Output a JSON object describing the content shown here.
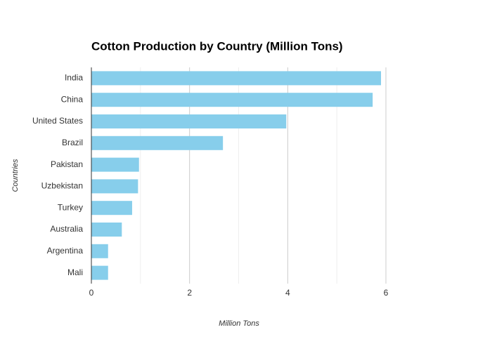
{
  "chart_data": {
    "type": "bar",
    "orientation": "horizontal",
    "title": "Cotton Production by Country (Million Tons)",
    "x_label": "Million Tons",
    "y_label": "Countries",
    "categories": [
      "India",
      "China",
      "United States",
      "Brazil",
      "Pakistan",
      "Uzbekistan",
      "Turkey",
      "Australia",
      "Argentina",
      "Mali"
    ],
    "values": [
      5.9,
      5.73,
      3.97,
      2.68,
      0.97,
      0.95,
      0.83,
      0.62,
      0.34,
      0.34
    ],
    "color": "#87ceeb",
    "xlim": [
      0,
      6
    ],
    "xticks": [
      0,
      2,
      4,
      6
    ],
    "xminorticks": [
      1,
      3,
      5
    ],
    "grid": true
  }
}
